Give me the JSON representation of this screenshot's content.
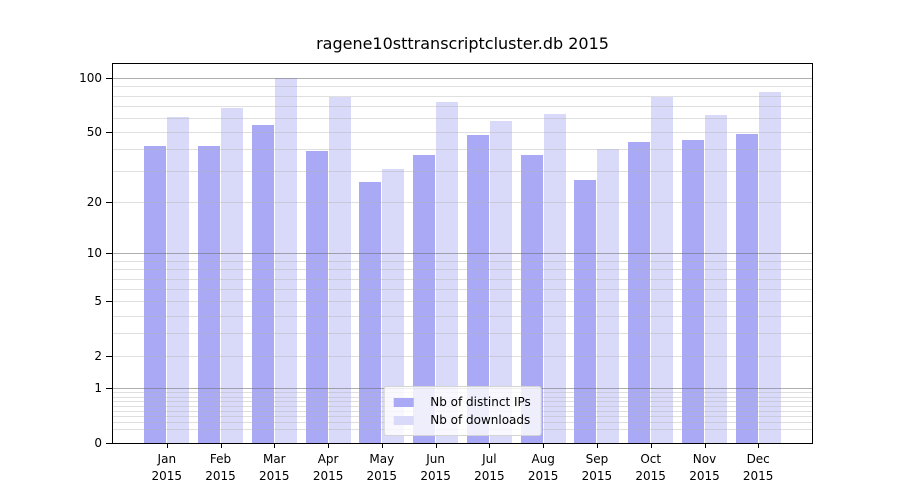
{
  "chart_data": {
    "type": "bar",
    "title": "ragene10sttranscriptcluster.db 2015",
    "categories": [
      "Jan",
      "Feb",
      "Mar",
      "Apr",
      "May",
      "Jun",
      "Jul",
      "Aug",
      "Sep",
      "Oct",
      "Nov",
      "Dec"
    ],
    "x_tick_sublabel": "2015",
    "series": [
      {
        "name": "Nb of distinct IPs",
        "color": "#a9a9f5",
        "values": [
          42,
          42,
          55,
          39,
          26,
          37,
          48,
          37,
          27,
          44,
          45,
          49
        ]
      },
      {
        "name": "Nb of downloads",
        "color": "#d9d9fa",
        "values": [
          61,
          68,
          100,
          78,
          31,
          74,
          58,
          63,
          40,
          78,
          62,
          84
        ]
      }
    ],
    "xlabel": "",
    "ylabel": "",
    "y_scale": "log10(1+x)",
    "ylim": [
      0,
      122
    ],
    "y_ticks": [
      100,
      50,
      20,
      10,
      5,
      2,
      1,
      0
    ],
    "grid": "on",
    "grid_major": [
      100,
      10,
      1
    ],
    "grid_minor": [
      0.2,
      0.3,
      0.4,
      0.5,
      0.6,
      0.7,
      0.8,
      0.9,
      2,
      3,
      4,
      5,
      6,
      7,
      8,
      9,
      20,
      30,
      40,
      50,
      60,
      70,
      80,
      90
    ],
    "legend": {
      "position": "lower center",
      "entries": [
        "Nb of distinct IPs",
        "Nb of downloads"
      ]
    },
    "colors": {
      "background": "#ffffff",
      "spine": "#000000",
      "grid_major": "#b0b0b0",
      "grid_minor": "#e6e6e6",
      "bar_distinct_ips": "#a9a9f5",
      "bar_downloads": "#d9d9fa"
    }
  }
}
